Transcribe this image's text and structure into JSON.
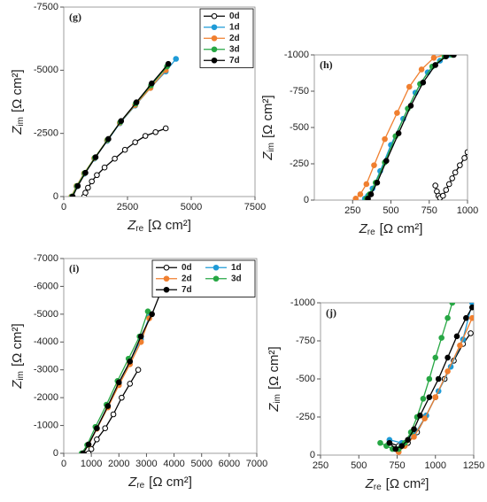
{
  "chart_data": [
    {
      "type": "scatter",
      "panel": "(g)",
      "legend": "upper right",
      "legend_columns": 1,
      "xlabel": {
        "main": "Z",
        "sub": "re",
        "unit": "[Ω cm²]"
      },
      "ylabel": {
        "main": "Z",
        "sub": "im",
        "unit": "[Ω cm²]"
      },
      "xlim": [
        0,
        7500
      ],
      "xticks": [
        0,
        2500,
        5000,
        7500
      ],
      "ylim": [
        0,
        -7500
      ],
      "yticks": [
        0,
        -2500,
        -5000,
        -7500
      ],
      "series": [
        {
          "name": "0d",
          "color": "#000000",
          "hollow": true,
          "x": [
            800,
            850,
            950,
            1100,
            1300,
            1600,
            2000,
            2400,
            2800,
            3200,
            3600,
            4000
          ],
          "values": [
            0,
            -150,
            -350,
            -600,
            -850,
            -1150,
            -1500,
            -1850,
            -2150,
            -2400,
            -2550,
            -2700
          ]
        },
        {
          "name": "1d",
          "color": "#1f9bd7",
          "x": [
            300,
            500,
            800,
            1200,
            1700,
            2200,
            2800,
            3400,
            4000,
            4400
          ],
          "values": [
            0,
            -400,
            -900,
            -1500,
            -2200,
            -2900,
            -3600,
            -4300,
            -4950,
            -5450
          ]
        },
        {
          "name": "2d",
          "color": "#f07f2f",
          "x": [
            300,
            500,
            800,
            1200,
            1700,
            2200,
            2800,
            3400,
            4000
          ],
          "values": [
            0,
            -420,
            -920,
            -1520,
            -2230,
            -2920,
            -3620,
            -4300,
            -5000
          ]
        },
        {
          "name": "3d",
          "color": "#27a744",
          "x": [
            320,
            520,
            820,
            1220,
            1720,
            2220,
            2820,
            3420,
            4050
          ],
          "values": [
            0,
            -420,
            -930,
            -1540,
            -2250,
            -2950,
            -3680,
            -4400,
            -5150
          ]
        },
        {
          "name": "7d",
          "color": "#000000",
          "x": [
            350,
            550,
            850,
            1250,
            1750,
            2250,
            2850,
            3450,
            4100
          ],
          "values": [
            0,
            -420,
            -940,
            -1560,
            -2280,
            -2990,
            -3730,
            -4480,
            -5250
          ]
        }
      ]
    },
    {
      "type": "scatter",
      "panel": "(h)",
      "xlabel": {
        "main": "Z",
        "sub": "re",
        "unit": "[Ω cm²]"
      },
      "ylabel": {
        "main": "Z",
        "sub": "im",
        "unit": "[Ω cm²]"
      },
      "xlim": [
        0,
        1000
      ],
      "xticks": [
        250,
        500,
        750,
        1000
      ],
      "ylim": [
        0,
        -1000
      ],
      "yticks": [
        0,
        -250,
        -500,
        -750,
        -1000
      ],
      "series": [
        {
          "color": "#000000",
          "hollow": true,
          "x": [
            790,
            800,
            810,
            820,
            840,
            860,
            880,
            900,
            920,
            950,
            980,
            1000
          ],
          "values": [
            -100,
            -60,
            -30,
            -15,
            -30,
            -70,
            -110,
            -150,
            -190,
            -240,
            -290,
            -330
          ]
        },
        {
          "color": "#1f9bd7",
          "x": [
            330,
            350,
            380,
            430,
            500,
            580,
            660,
            740,
            820,
            880
          ],
          "values": [
            -10,
            -30,
            -80,
            -200,
            -380,
            -560,
            -740,
            -880,
            -960,
            -1000
          ]
        },
        {
          "color": "#f07f2f",
          "x": [
            270,
            300,
            340,
            390,
            460,
            540,
            620,
            700,
            780,
            850
          ],
          "values": [
            -10,
            -40,
            -110,
            -240,
            -420,
            -600,
            -780,
            -900,
            -980,
            -1000
          ]
        },
        {
          "color": "#27a744",
          "x": [
            340,
            360,
            400,
            460,
            530,
            610,
            690,
            770,
            850,
            900
          ],
          "values": [
            -10,
            -40,
            -120,
            -260,
            -440,
            -630,
            -800,
            -920,
            -990,
            -1000
          ]
        },
        {
          "color": "#000000",
          "x": [
            350,
            370,
            410,
            470,
            550,
            630,
            710,
            790,
            860,
            910
          ],
          "values": [
            -10,
            -40,
            -120,
            -270,
            -460,
            -650,
            -810,
            -930,
            -990,
            -1000
          ]
        }
      ]
    },
    {
      "type": "scatter",
      "panel": "(i)",
      "legend": "upper right",
      "legend_columns": 2,
      "xlabel": {
        "main": "Z",
        "sub": "re",
        "unit": "[Ω cm²]"
      },
      "ylabel": {
        "main": "Z",
        "sub": "im",
        "unit": "[Ω cm²]"
      },
      "xlim": [
        0,
        7000
      ],
      "xticks": [
        0,
        1000,
        2000,
        3000,
        4000,
        5000,
        6000,
        7000
      ],
      "ylim": [
        0,
        -7000
      ],
      "yticks": [
        0,
        -1000,
        -2000,
        -3000,
        -4000,
        -5000,
        -6000,
        -7000
      ],
      "series": [
        {
          "name": "0d",
          "color": "#000000",
          "hollow": true,
          "x": [
            900,
            1000,
            1200,
            1500,
            1800,
            2100,
            2400,
            2700
          ],
          "values": [
            0,
            -150,
            -500,
            -900,
            -1400,
            -2000,
            -2500,
            -3000
          ]
        },
        {
          "name": "1d",
          "color": "#1f9bd7",
          "x": [
            700,
            900,
            1200,
            1600,
            2000,
            2400,
            2800,
            3100
          ],
          "values": [
            0,
            -300,
            -900,
            -1700,
            -2500,
            -3300,
            -4100,
            -4900
          ]
        },
        {
          "name": "2d",
          "color": "#f07f2f",
          "x": [
            700,
            900,
            1200,
            1600,
            2000,
            2400,
            2800,
            3100
          ],
          "values": [
            0,
            -300,
            -880,
            -1650,
            -2450,
            -3200,
            -4000,
            -4850
          ]
        },
        {
          "name": "3d",
          "color": "#27a744",
          "x": [
            650,
            850,
            1150,
            1550,
            1950,
            2350,
            2750,
            3050
          ],
          "values": [
            0,
            -300,
            -950,
            -1750,
            -2600,
            -3400,
            -4200,
            -5100
          ]
        },
        {
          "name": "7d",
          "color": "#000000",
          "x": [
            700,
            900,
            1200,
            1600,
            2000,
            2400,
            2800,
            3200,
            3500
          ],
          "values": [
            0,
            -320,
            -900,
            -1700,
            -2550,
            -3300,
            -4200,
            -5000,
            -5750
          ]
        }
      ]
    },
    {
      "type": "scatter",
      "panel": "(j)",
      "xlabel": {
        "main": "Z",
        "sub": "re",
        "unit": "[Ω cm²]"
      },
      "ylabel": {
        "main": "Z",
        "sub": "im",
        "unit": "[Ω cm²]"
      },
      "xlim": [
        250,
        1250
      ],
      "xticks": [
        250,
        500,
        750,
        1000,
        1250
      ],
      "ylim": [
        0,
        -1000
      ],
      "yticks": [
        0,
        -250,
        -500,
        -750,
        -1000
      ],
      "series": [
        {
          "color": "#000000",
          "hollow": true,
          "x": [
            700,
            760,
            820,
            880,
            940,
            1000,
            1060,
            1120,
            1180,
            1230
          ],
          "values": [
            -80,
            -60,
            -80,
            -150,
            -260,
            -380,
            -500,
            -620,
            -730,
            -800
          ]
        },
        {
          "color": "#1f9bd7",
          "x": [
            700,
            780,
            860,
            940,
            1020,
            1100,
            1180,
            1240
          ],
          "values": [
            -100,
            -80,
            -130,
            -260,
            -420,
            -580,
            -760,
            -1000
          ]
        },
        {
          "color": "#f07f2f",
          "x": [
            760,
            800,
            860,
            930,
            1000,
            1080,
            1160,
            1240
          ],
          "values": [
            -20,
            -60,
            -120,
            -240,
            -380,
            -550,
            -720,
            -900
          ]
        },
        {
          "color": "#27a744",
          "x": [
            640,
            680,
            720,
            760,
            800,
            840,
            880,
            920,
            960,
            1000,
            1040,
            1080,
            1110
          ],
          "values": [
            -80,
            -60,
            -40,
            -40,
            -80,
            -150,
            -250,
            -370,
            -500,
            -640,
            -770,
            -900,
            -1000
          ]
        },
        {
          "color": "#000000",
          "x": [
            700,
            740,
            780,
            820,
            860,
            900,
            960,
            1020,
            1080,
            1140,
            1200,
            1240
          ],
          "values": [
            -80,
            -40,
            -60,
            -100,
            -170,
            -260,
            -380,
            -500,
            -640,
            -780,
            -900,
            -970
          ]
        }
      ]
    }
  ]
}
